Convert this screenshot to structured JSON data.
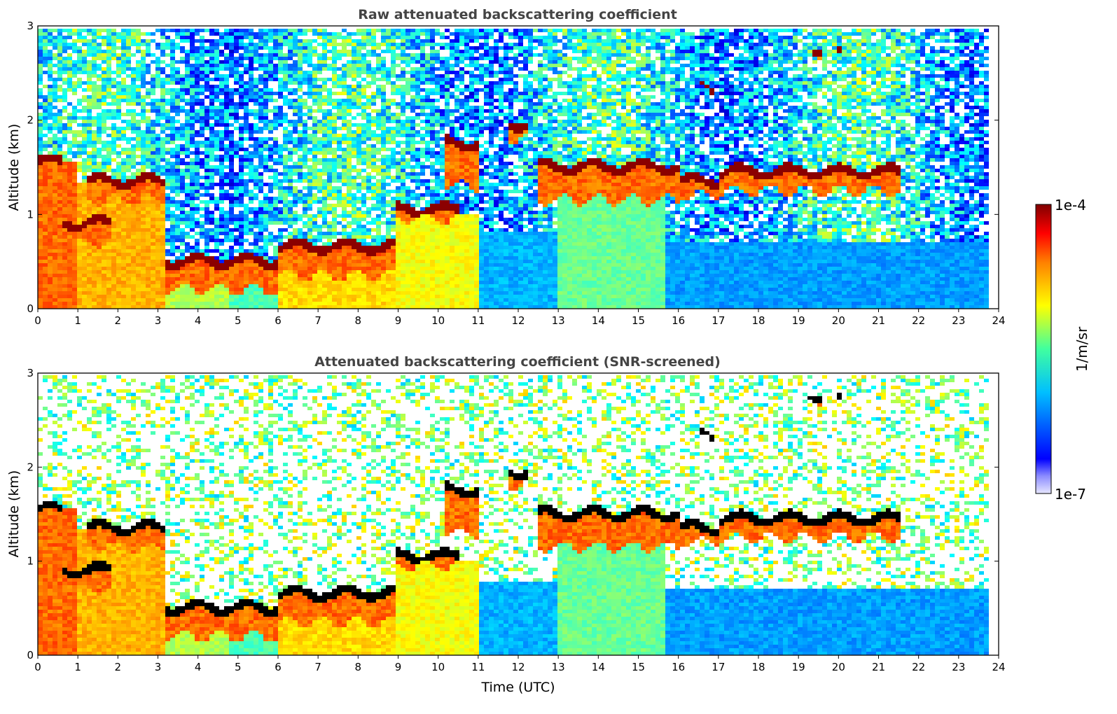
{
  "chart_data": [
    {
      "type": "heatmap",
      "title": "Raw attenuated backscattering coefficient",
      "xlabel": "",
      "ylabel": "Altitude (km)",
      "xlim": [
        0,
        24
      ],
      "ylim": [
        0,
        3
      ],
      "xticks": [
        "0",
        "1",
        "2",
        "3",
        "4",
        "5",
        "6",
        "7",
        "8",
        "9",
        "10",
        "11",
        "12",
        "13",
        "14",
        "15",
        "16",
        "17",
        "18",
        "19",
        "20",
        "21",
        "22",
        "23",
        "24"
      ],
      "yticks": [
        "0",
        "1",
        "2",
        "3"
      ],
      "layers": [
        {
          "t0": 0.0,
          "t1": 1.0,
          "level": 0.78,
          "top": 1.55
        },
        {
          "t0": 1.0,
          "t1": 3.2,
          "level": 0.7,
          "top": 1.35
        },
        {
          "t0": 3.2,
          "t1": 4.8,
          "level": 0.55,
          "top": 0.45
        },
        {
          "t0": 4.8,
          "t1": 6.0,
          "level": 0.45,
          "top": 0.5
        },
        {
          "t0": 6.0,
          "t1": 9.0,
          "level": 0.66,
          "top": 0.6
        },
        {
          "t0": 9.0,
          "t1": 11.0,
          "level": 0.62,
          "top": 1.0
        },
        {
          "t0": 11.0,
          "t1": 13.0,
          "level": 0.3,
          "top": 0.8
        },
        {
          "t0": 13.0,
          "t1": 15.7,
          "level": 0.48,
          "top": 1.4
        },
        {
          "t0": 15.7,
          "t1": 23.8,
          "level": 0.28,
          "top": 0.7
        }
      ],
      "clouds": [
        {
          "t0": 0.0,
          "t1": 0.6,
          "base": 0.3,
          "top": 1.6
        },
        {
          "t0": 0.5,
          "t1": 1.8,
          "base": 0.7,
          "top": 0.95
        },
        {
          "t0": 1.2,
          "t1": 3.2,
          "base": 1.15,
          "top": 1.4
        },
        {
          "t0": 3.2,
          "t1": 6.0,
          "base": 0.2,
          "top": 0.55
        },
        {
          "t0": 6.0,
          "t1": 9.0,
          "base": 0.35,
          "top": 0.7
        },
        {
          "t0": 9.0,
          "t1": 10.5,
          "base": 0.95,
          "top": 1.1
        },
        {
          "t0": 10.2,
          "t1": 11.0,
          "base": 1.3,
          "top": 1.8
        },
        {
          "t0": 11.8,
          "t1": 12.2,
          "base": 1.8,
          "top": 2.0
        },
        {
          "t0": 12.5,
          "t1": 16.0,
          "base": 1.15,
          "top": 1.55
        },
        {
          "t0": 16.0,
          "t1": 17.0,
          "base": 1.2,
          "top": 1.4
        },
        {
          "t0": 16.5,
          "t1": 16.9,
          "base": 2.3,
          "top": 2.4
        },
        {
          "t0": 17.0,
          "t1": 21.6,
          "base": 1.25,
          "top": 1.5
        },
        {
          "t0": 19.2,
          "t1": 19.6,
          "base": 2.7,
          "top": 2.8
        },
        {
          "t0": 19.9,
          "t1": 20.1,
          "base": 2.65,
          "top": 2.75
        }
      ]
    },
    {
      "type": "heatmap",
      "title": "Attenuated backscattering coefficient (SNR-screened)",
      "xlabel": "Time (UTC)",
      "ylabel": "Altitude (km)",
      "xlim": [
        0,
        24
      ],
      "ylim": [
        0,
        3
      ],
      "xticks": [
        "0",
        "1",
        "2",
        "3",
        "4",
        "5",
        "6",
        "7",
        "8",
        "9",
        "10",
        "11",
        "12",
        "13",
        "14",
        "15",
        "16",
        "17",
        "18",
        "19",
        "20",
        "21",
        "22",
        "23",
        "24"
      ],
      "yticks": [
        "0",
        "1",
        "2",
        "3"
      ],
      "screened": true
    }
  ],
  "colorbar": {
    "label": "1/m/sr",
    "max_label": "1e-4",
    "min_label": "1e-7",
    "colormap": "jet",
    "scale": "log"
  },
  "colors": {
    "cloud_core_raw": "#8b0000",
    "cloud_core_screened": "#000000",
    "title_color": "#444444"
  }
}
